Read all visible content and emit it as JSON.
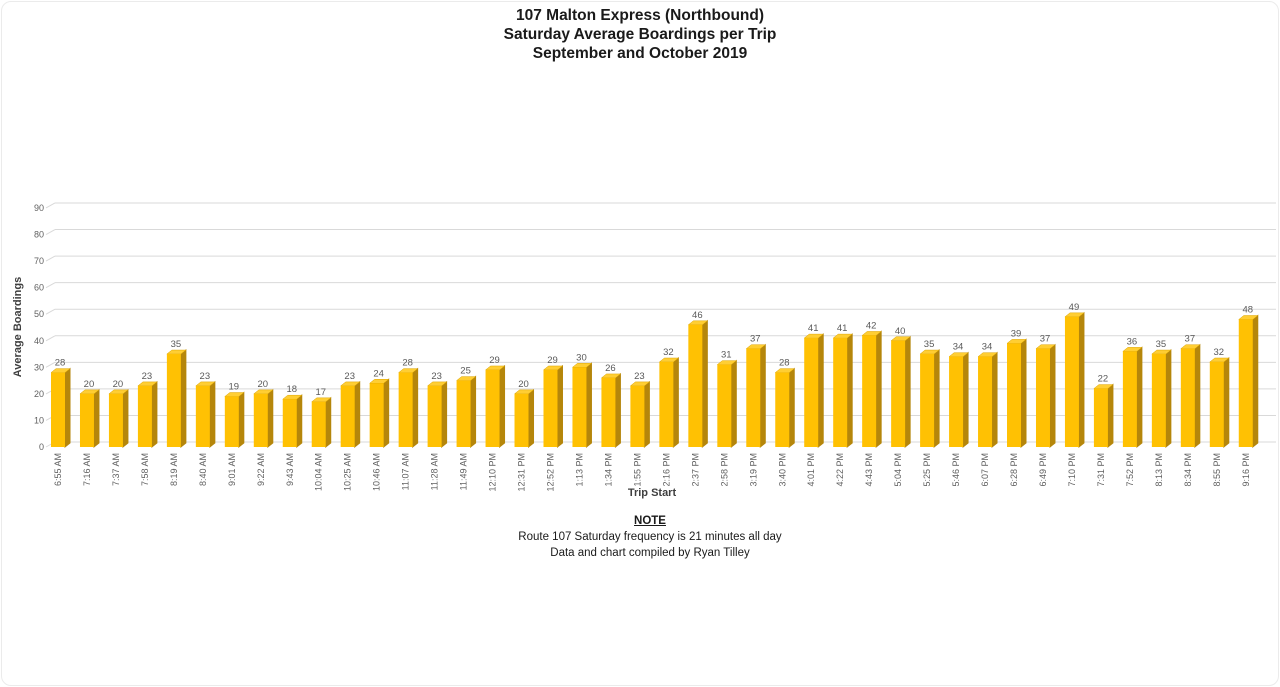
{
  "title": {
    "line1": "107 Malton Express (Northbound)",
    "line2": "Saturday Average Boardings per Trip",
    "line3": "September and October 2019"
  },
  "note": {
    "heading": "NOTE",
    "line1": "Route 107 Saturday frequency is 21 minutes all day",
    "line2": "Data and chart compiled by Ryan Tilley"
  },
  "chart_data": {
    "type": "bar",
    "style": "3d-bar",
    "title": "107 Malton Express (Northbound) — Saturday Average Boardings per Trip — September and October 2019",
    "xlabel": "Trip Start",
    "ylabel": "Average Boardings",
    "ylim": [
      0,
      90
    ],
    "yticks": [
      0,
      10,
      20,
      30,
      40,
      50,
      60,
      70,
      80,
      90
    ],
    "grid": true,
    "legend": false,
    "data_labels": true,
    "categories": [
      "6:55 AM",
      "7:16 AM",
      "7:37 AM",
      "7:58 AM",
      "8:19 AM",
      "8:40 AM",
      "9:01 AM",
      "9:22 AM",
      "9:43 AM",
      "10:04 AM",
      "10:25 AM",
      "10:46 AM",
      "11:07 AM",
      "11:28 AM",
      "11:49 AM",
      "12:10 PM",
      "12:31 PM",
      "12:52 PM",
      "1:13 PM",
      "1:34 PM",
      "1:55 PM",
      "2:16 PM",
      "2:37 PM",
      "2:58 PM",
      "3:19 PM",
      "3:40 PM",
      "4:01 PM",
      "4:22 PM",
      "4:43 PM",
      "5:04 PM",
      "5:25 PM",
      "5:46 PM",
      "6:07 PM",
      "6:28 PM",
      "6:49 PM",
      "7:10 PM",
      "7:31 PM",
      "7:52 PM",
      "8:13 PM",
      "8:34 PM",
      "8:55 PM",
      "9:16 PM"
    ],
    "values": [
      28,
      20,
      20,
      23,
      35,
      23,
      19,
      20,
      18,
      17,
      23,
      24,
      28,
      23,
      25,
      29,
      20,
      29,
      30,
      26,
      23,
      32,
      46,
      31,
      37,
      28,
      41,
      41,
      42,
      40,
      35,
      34,
      34,
      39,
      37,
      49,
      22,
      36,
      35,
      37,
      32,
      48
    ],
    "colors": {
      "bar_front": "#FFC103",
      "bar_top": "#FFCE33",
      "bar_side": "#B5860B",
      "bar_edge": "#DCA400",
      "gridline": "#D9D9D9",
      "tick_label": "#606060",
      "data_label": "#595959"
    }
  }
}
